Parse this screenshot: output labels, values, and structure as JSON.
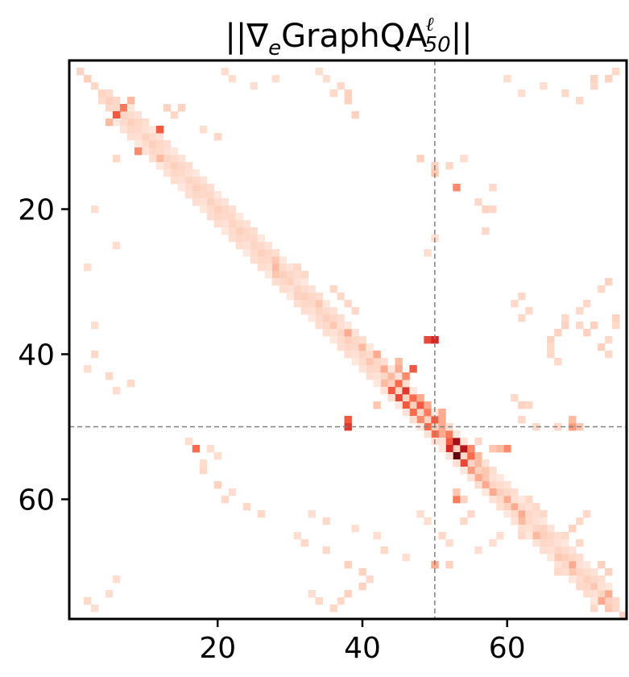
{
  "chart_data": {
    "type": "heatmap",
    "title": {
      "prefix": "||∇",
      "prefix_sub": "e",
      "main": "GraphQA",
      "sup": "ℓ",
      "sub": "50",
      "suffix": "||"
    },
    "xlabel": "",
    "ylabel": "",
    "size": 77,
    "xlim": [
      0,
      76
    ],
    "ylim": [
      76,
      0
    ],
    "x_ticks": [
      20,
      40,
      60
    ],
    "x_tick_labels": [
      "20",
      "40",
      "60"
    ],
    "y_ticks": [
      20,
      40,
      60
    ],
    "y_tick_labels": [
      "20",
      "40",
      "60"
    ],
    "colormap": "Reds",
    "grid": false,
    "reference_lines": {
      "x": 50,
      "y": 50,
      "style": "dashed",
      "color": "#808080"
    },
    "diagonal_band": [
      {
        "from": 1,
        "to": 76,
        "offset": 0,
        "value": 0.12
      },
      {
        "from": 4,
        "to": 74,
        "offset": 1,
        "value": 0.09
      },
      {
        "from": 6,
        "to": 72,
        "offset": 2,
        "value": 0.06
      },
      {
        "from": 10,
        "to": 70,
        "offset": -1,
        "value": 0.07
      }
    ],
    "cells": [
      [
        7,
        6,
        0.55
      ],
      [
        6,
        7,
        0.45
      ],
      [
        9,
        12,
        0.55
      ],
      [
        12,
        9,
        0.4
      ],
      [
        13,
        12,
        0.25
      ],
      [
        53,
        17,
        0.5
      ],
      [
        17,
        53,
        0.4
      ],
      [
        38,
        49,
        0.6
      ],
      [
        38,
        50,
        0.7
      ],
      [
        49,
        38,
        0.55
      ],
      [
        50,
        38,
        0.65
      ],
      [
        42,
        47,
        0.55
      ],
      [
        43,
        46,
        0.4
      ],
      [
        44,
        45,
        0.5
      ],
      [
        45,
        44,
        0.55
      ],
      [
        46,
        45,
        0.6
      ],
      [
        45,
        46,
        0.65
      ],
      [
        47,
        46,
        0.55
      ],
      [
        46,
        47,
        0.5
      ],
      [
        48,
        47,
        0.5
      ],
      [
        47,
        48,
        0.55
      ],
      [
        48,
        49,
        0.45
      ],
      [
        49,
        48,
        0.4
      ],
      [
        50,
        49,
        0.5
      ],
      [
        49,
        50,
        0.55
      ],
      [
        51,
        50,
        0.5
      ],
      [
        52,
        52,
        0.55
      ],
      [
        53,
        52,
        0.7
      ],
      [
        52,
        53,
        0.85
      ],
      [
        53,
        54,
        0.8
      ],
      [
        54,
        53,
        1.0
      ],
      [
        54,
        55,
        0.5
      ],
      [
        55,
        54,
        0.6
      ],
      [
        53,
        55,
        0.4
      ],
      [
        51,
        52,
        0.45
      ],
      [
        56,
        55,
        0.35
      ],
      [
        57,
        56,
        0.3
      ],
      [
        58,
        57,
        0.3
      ],
      [
        59,
        58,
        0.3
      ],
      [
        60,
        53,
        0.45
      ],
      [
        53,
        60,
        0.4
      ],
      [
        60,
        60,
        0.3
      ],
      [
        61,
        61,
        0.3
      ],
      [
        62,
        62,
        0.3
      ],
      [
        63,
        62,
        0.25
      ],
      [
        65,
        64,
        0.25
      ],
      [
        68,
        67,
        0.2
      ],
      [
        70,
        69,
        0.2
      ],
      [
        72,
        72,
        0.2
      ],
      [
        73,
        74,
        0.3
      ],
      [
        74,
        73,
        0.3
      ],
      [
        75,
        74,
        0.2
      ],
      [
        69,
        69,
        0.3
      ],
      [
        50,
        69,
        0.35
      ],
      [
        69,
        50,
        0.3
      ],
      [
        42,
        43,
        0.3
      ],
      [
        44,
        43,
        0.25
      ],
      [
        47,
        42,
        0.2
      ],
      [
        37,
        38,
        0.3
      ],
      [
        39,
        40,
        0.25
      ],
      [
        40,
        42,
        0.3
      ],
      [
        36,
        36,
        0.2
      ],
      [
        33,
        34,
        0.2
      ],
      [
        29,
        28,
        0.2
      ],
      [
        8,
        5,
        0.25
      ],
      [
        5,
        8,
        0.25
      ],
      [
        2,
        2,
        0.15
      ],
      [
        3,
        3,
        0.12
      ],
      [
        10,
        10,
        0.15
      ],
      [
        19,
        19,
        0.15
      ],
      [
        23,
        23,
        0.15
      ],
      [
        28,
        28,
        0.25
      ],
      [
        27,
        28,
        0.2
      ],
      [
        30,
        30,
        0.15
      ],
      [
        32,
        31,
        0.15
      ],
      [
        6,
        13,
        0.15
      ],
      [
        13,
        6,
        0.12
      ],
      [
        6,
        15,
        0.15
      ],
      [
        4,
        36,
        0.12
      ],
      [
        5,
        38,
        0.15
      ],
      [
        7,
        39,
        0.15
      ],
      [
        13,
        48,
        0.15
      ],
      [
        14,
        50,
        0.15
      ],
      [
        15,
        50,
        0.2
      ],
      [
        19,
        56,
        0.12
      ],
      [
        20,
        57,
        0.15
      ],
      [
        20,
        58,
        0.12
      ],
      [
        23,
        57,
        0.12
      ],
      [
        17,
        58,
        0.12
      ],
      [
        40,
        66,
        0.12
      ],
      [
        41,
        67,
        0.12
      ],
      [
        36,
        70,
        0.12
      ],
      [
        38,
        74,
        0.12
      ],
      [
        39,
        73,
        0.15
      ],
      [
        40,
        74,
        0.12
      ],
      [
        35,
        75,
        0.15
      ],
      [
        36,
        75,
        0.12
      ],
      [
        46,
        61,
        0.12
      ],
      [
        47,
        62,
        0.15
      ],
      [
        47,
        63,
        0.12
      ],
      [
        59,
        53,
        0.2
      ],
      [
        60,
        54,
        0.15
      ],
      [
        62,
        55,
        0.12
      ],
      [
        63,
        54,
        0.12
      ],
      [
        32,
        62,
        0.12
      ],
      [
        33,
        61,
        0.12
      ],
      [
        34,
        63,
        0.12
      ],
      [
        35,
        62,
        0.12
      ],
      [
        30,
        74,
        0.15
      ],
      [
        31,
        73,
        0.12
      ],
      [
        33,
        71,
        0.12
      ],
      [
        34,
        70,
        0.12
      ],
      [
        35,
        68,
        0.12
      ],
      [
        36,
        68,
        0.15
      ],
      [
        37,
        67,
        0.15
      ],
      [
        38,
        66,
        0.15
      ],
      [
        39,
        66,
        0.12
      ],
      [
        36,
        72,
        0.15
      ],
      [
        37,
        71,
        0.15
      ],
      [
        2,
        72,
        0.15
      ],
      [
        3,
        72,
        0.12
      ],
      [
        2,
        74,
        0.15
      ],
      [
        1,
        75,
        0.12
      ],
      [
        4,
        68,
        0.12
      ],
      [
        5,
        70,
        0.12
      ],
      [
        3,
        65,
        0.1
      ],
      [
        2,
        60,
        0.1
      ],
      [
        4,
        62,
        0.1
      ],
      [
        1,
        21,
        0.1
      ],
      [
        2,
        22,
        0.1
      ],
      [
        3,
        25,
        0.1
      ],
      [
        2,
        28,
        0.1
      ],
      [
        1,
        34,
        0.1
      ],
      [
        2,
        35,
        0.1
      ],
      [
        3,
        37,
        0.12
      ],
      [
        4,
        38,
        0.15
      ],
      [
        5,
        38,
        0.12
      ],
      [
        14,
        52,
        0.12
      ],
      [
        13,
        54,
        0.1
      ],
      [
        24,
        50,
        0.1
      ],
      [
        26,
        49,
        0.1
      ],
      [
        44,
        8,
        0.12
      ],
      [
        45,
        6,
        0.1
      ],
      [
        42,
        2,
        0.1
      ],
      [
        40,
        3,
        0.12
      ],
      [
        43,
        5,
        0.12
      ],
      [
        36,
        3,
        0.1
      ],
      [
        28,
        2,
        0.1
      ],
      [
        25,
        6,
        0.1
      ],
      [
        20,
        3,
        0.1
      ],
      [
        12,
        12,
        0.12
      ],
      [
        7,
        14,
        0.12
      ],
      [
        9,
        18,
        0.1
      ],
      [
        10,
        20,
        0.12
      ],
      [
        56,
        18,
        0.12
      ],
      [
        58,
        20,
        0.15
      ],
      [
        60,
        21,
        0.12
      ],
      [
        59,
        22,
        0.1
      ],
      [
        61,
        24,
        0.12
      ],
      [
        62,
        26,
        0.12
      ],
      [
        65,
        31,
        0.1
      ],
      [
        66,
        32,
        0.12
      ],
      [
        67,
        35,
        0.12
      ],
      [
        69,
        38,
        0.15
      ],
      [
        70,
        40,
        0.15
      ],
      [
        71,
        41,
        0.12
      ],
      [
        72,
        40,
        0.15
      ],
      [
        73,
        38,
        0.15
      ],
      [
        74,
        37,
        0.12
      ],
      [
        75,
        36,
        0.12
      ],
      [
        74,
        34,
        0.12
      ],
      [
        73,
        33,
        0.1
      ],
      [
        62,
        33,
        0.1
      ],
      [
        63,
        35,
        0.12
      ],
      [
        64,
        39,
        0.1
      ],
      [
        65,
        42,
        0.1
      ],
      [
        67,
        43,
        0.12
      ],
      [
        68,
        46,
        0.1
      ],
      [
        75,
        3,
        0.1
      ],
      [
        74,
        2,
        0.12
      ],
      [
        73,
        5,
        0.1
      ],
      [
        71,
        6,
        0.1
      ],
      [
        65,
        59,
        0.1
      ],
      [
        66,
        58,
        0.1
      ],
      [
        67,
        56,
        0.1
      ],
      [
        69,
        52,
        0.15
      ],
      [
        62,
        48,
        0.1
      ],
      [
        63,
        49,
        0.1
      ],
      [
        65,
        51,
        0.12
      ],
      [
        66,
        52,
        0.1
      ],
      [
        62,
        71,
        0.12
      ],
      [
        63,
        70,
        0.12
      ],
      [
        64,
        69,
        0.15
      ],
      [
        65,
        68,
        0.12
      ],
      [
        66,
        70,
        0.12
      ],
      [
        69,
        73,
        0.15
      ],
      [
        70,
        74,
        0.15
      ],
      [
        71,
        71,
        0.12
      ],
      [
        72,
        70,
        0.12
      ],
      [
        75,
        72,
        0.12
      ],
      [
        65,
        62,
        0.12
      ],
      [
        64,
        65,
        0.15
      ],
      [
        70,
        67,
        0.12
      ],
      [
        54,
        20,
        0.1
      ],
      [
        53,
        19,
        0.1
      ],
      [
        55,
        18,
        0.1
      ],
      [
        52,
        16,
        0.1
      ],
      [
        49,
        62,
        0.12
      ],
      [
        50,
        64,
        0.12
      ],
      [
        50,
        67,
        0.12
      ],
      [
        49,
        69,
        0.25
      ],
      [
        50,
        70,
        0.2
      ],
      [
        53,
        58,
        0.2
      ],
      [
        53,
        59,
        0.25
      ],
      [
        52,
        56,
        0.12
      ],
      [
        60,
        63,
        0.12
      ],
      [
        61,
        64,
        0.12
      ],
      [
        62,
        65,
        0.12
      ],
      [
        61,
        60,
        0.15
      ],
      [
        41,
        41,
        0.2
      ],
      [
        41,
        45,
        0.25
      ],
      [
        42,
        45,
        0.3
      ],
      [
        43,
        44,
        0.25
      ],
      [
        46,
        48,
        0.3
      ],
      [
        47,
        49,
        0.3
      ],
      [
        48,
        51,
        0.3
      ],
      [
        49,
        51,
        0.3
      ],
      [
        50,
        51,
        0.3
      ],
      [
        51,
        51,
        0.3
      ],
      [
        54,
        56,
        0.25
      ],
      [
        55,
        56,
        0.25
      ],
      [
        56,
        57,
        0.2
      ],
      [
        57,
        57,
        0.2
      ],
      [
        31,
        36,
        0.12
      ],
      [
        32,
        37,
        0.12
      ],
      [
        33,
        38,
        0.12
      ],
      [
        34,
        39,
        0.12
      ],
      [
        28,
        31,
        0.12
      ],
      [
        29,
        32,
        0.12
      ],
      [
        16,
        17,
        0.12
      ],
      [
        17,
        18,
        0.12
      ],
      [
        18,
        19,
        0.12
      ],
      [
        20,
        21,
        0.12
      ],
      [
        21,
        22,
        0.12
      ],
      [
        24,
        25,
        0.12
      ],
      [
        25,
        26,
        0.12
      ],
      [
        16,
        14,
        0.1
      ],
      [
        18,
        16,
        0.1
      ],
      [
        21,
        19,
        0.1
      ],
      [
        24,
        22,
        0.1
      ],
      [
        27,
        25,
        0.1
      ],
      [
        30,
        28,
        0.1
      ],
      [
        33,
        31,
        0.1
      ],
      [
        36,
        34,
        0.1
      ],
      [
        39,
        37,
        0.1
      ]
    ]
  }
}
